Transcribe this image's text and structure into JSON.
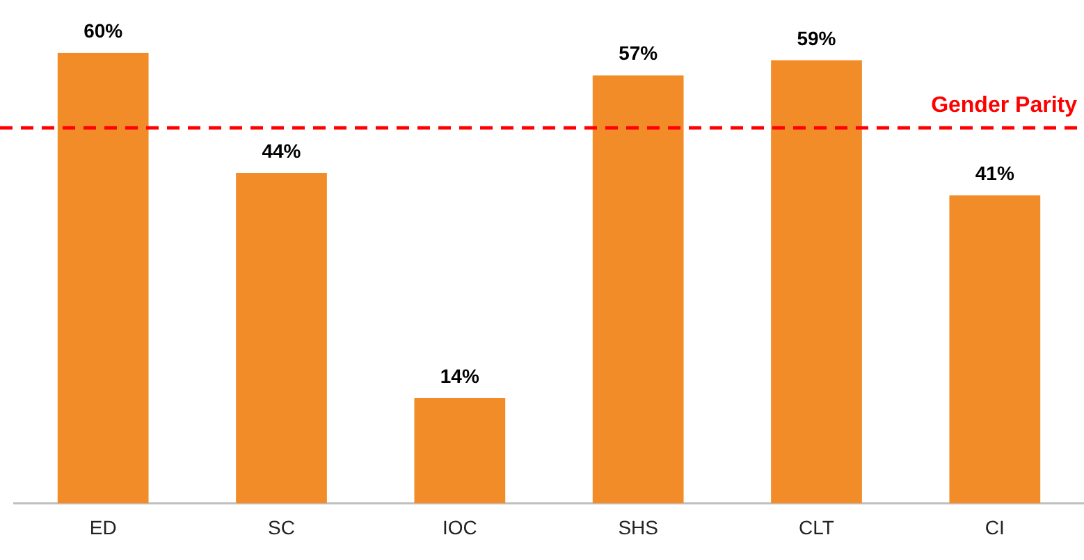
{
  "chart_data": {
    "type": "bar",
    "categories": [
      "ED",
      "SC",
      "IOC",
      "SHS",
      "CLT",
      "CI"
    ],
    "values": [
      60,
      44,
      14,
      57,
      59,
      41
    ],
    "color": "#f28c28",
    "value_labels": [
      "60%",
      "44%",
      "14%",
      "57%",
      "59%",
      "41%"
    ],
    "ref_lines": [
      {
        "axis": "y",
        "value": 50,
        "label": "Gender Parity",
        "color": "#ff0000",
        "line_style": "dashed"
      }
    ],
    "grid": false,
    "legend": false
  }
}
